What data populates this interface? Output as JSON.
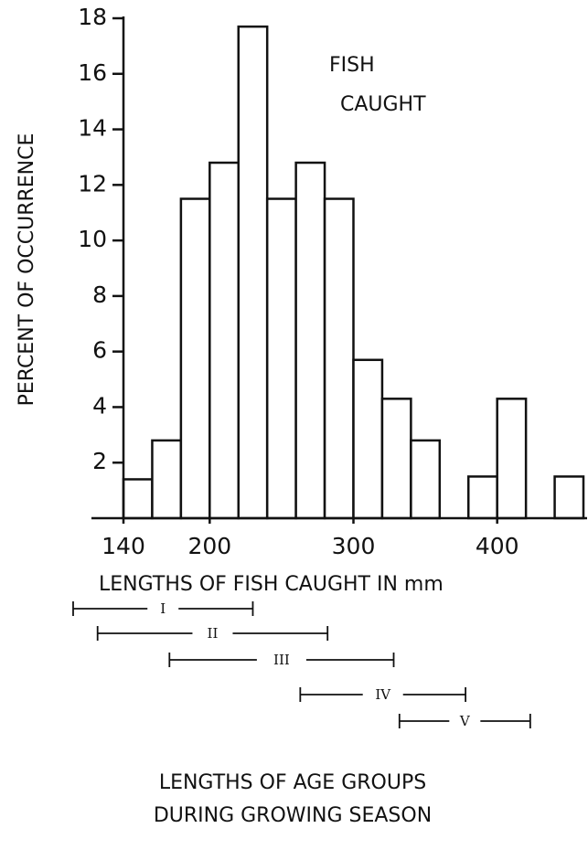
{
  "chart_data": {
    "type": "histogram",
    "annotation_lines": [
      "FISH",
      "CAUGHT"
    ],
    "xlabel": "LENGTHS OF FISH CAUGHT IN  mm",
    "ylabel": "PERCENT OF OCCURRENCE",
    "bins": [
      140,
      160,
      180,
      200,
      220,
      240,
      260,
      280,
      300,
      320,
      340,
      360,
      380,
      400,
      420,
      440,
      460
    ],
    "values": [
      1.4,
      2.8,
      11.5,
      12.8,
      17.7,
      11.5,
      12.8,
      11.5,
      5.7,
      4.3,
      2.8,
      0,
      1.5,
      4.3,
      0,
      1.5
    ],
    "color": "#ffffff",
    "xlim": [
      140,
      460
    ],
    "xticks": [
      140,
      200,
      300,
      400
    ],
    "ylim": [
      0,
      18
    ],
    "yticks": [
      2,
      4,
      6,
      8,
      10,
      12,
      14,
      16,
      18
    ],
    "age_groups": [
      {
        "label": "I",
        "start": 105,
        "end": 230
      },
      {
        "label": "II",
        "start": 122,
        "end": 282
      },
      {
        "label": "III",
        "start": 172,
        "end": 328
      },
      {
        "label": "IV",
        "start": 263,
        "end": 378
      },
      {
        "label": "V",
        "start": 332,
        "end": 423
      }
    ],
    "caption_lines": [
      "LENGTHS OF AGE GROUPS",
      "DURING GROWING SEASON"
    ]
  }
}
